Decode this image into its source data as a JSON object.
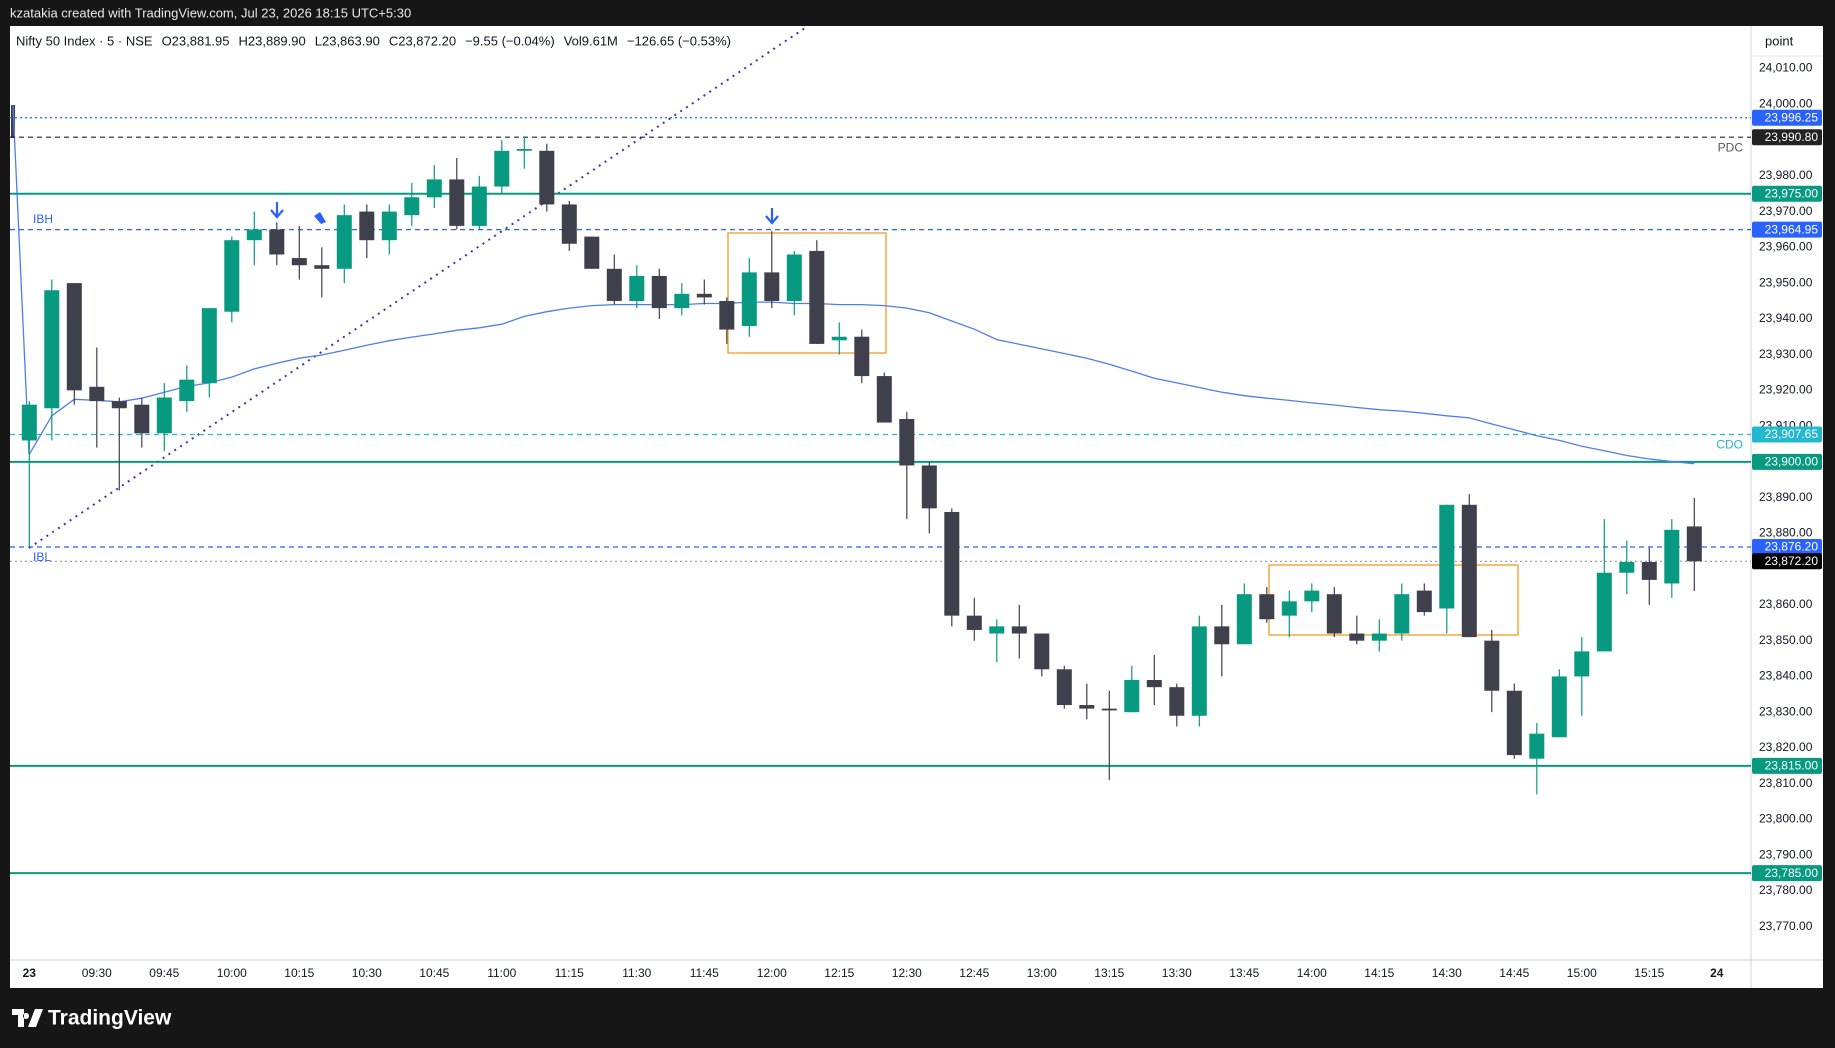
{
  "top_bar": {
    "text": "kzatakia created with TradingView.com, Jul 23, 2026 18:15 UTC+5:30"
  },
  "chart_data": {
    "type": "candlestick",
    "header": [
      "Nifty 50 Index · 5 · NSE",
      "O23,881.95",
      "H23,889.90",
      "L23,863.90",
      "C23,872.20",
      "−9.55 (−0.04%)",
      "Vol9.61M",
      "−126.65 (−0.53%)"
    ],
    "y_axis_title": "point",
    "categories": [
      "23",
      null,
      null,
      "09:30",
      null,
      null,
      "09:45",
      null,
      null,
      "10:00",
      null,
      null,
      "10:15",
      null,
      null,
      "10:30",
      null,
      null,
      "10:45",
      null,
      null,
      "11:00",
      null,
      null,
      "11:15",
      null,
      null,
      "11:30",
      null,
      null,
      "11:45",
      null,
      null,
      "12:00",
      null,
      null,
      "12:15",
      null,
      null,
      "12:30",
      null,
      null,
      "12:45",
      null,
      null,
      "13:00",
      null,
      null,
      "13:15",
      null,
      null,
      "13:30",
      null,
      null,
      "13:45",
      null,
      null,
      "14:00",
      null,
      null,
      "14:15",
      null,
      null,
      "14:30",
      null,
      null,
      "14:45",
      null,
      null,
      "15:00",
      null,
      null,
      "15:15",
      null,
      null,
      "24"
    ],
    "bold_categories": [
      "23",
      "24"
    ],
    "open": [
      23906,
      23915,
      23950,
      23921,
      23917,
      23916,
      23908,
      23917,
      23922,
      23942,
      23962,
      23965,
      23957,
      23955,
      23954,
      23970,
      23962,
      23969,
      23974,
      23979,
      23966,
      23977,
      23987,
      23987,
      23972,
      23963,
      23954,
      23945,
      23952,
      23943,
      23947,
      23945,
      23938,
      23953,
      23945,
      23959,
      23934,
      23935,
      23924,
      23912,
      23899,
      23886,
      23857,
      23852,
      23854,
      23852,
      23842,
      23832,
      23831,
      23830,
      23839,
      23837,
      23829,
      23854,
      23849,
      23863,
      23857,
      23861,
      23863,
      23852,
      23850,
      23852,
      23864,
      23859,
      23888,
      23850,
      23836,
      23817,
      23823,
      23840,
      23847,
      23869,
      23872,
      23866,
      23881.95,
      null
    ],
    "high": [
      23917,
      23951,
      23950,
      23932,
      23918,
      23918,
      23922,
      23927,
      23943,
      23963,
      23970,
      23967,
      23966,
      23960,
      23972,
      23972,
      23972,
      23978,
      23983,
      23985,
      23980,
      23990,
      23991,
      23989,
      23973,
      23963,
      23958,
      23955,
      23954,
      23950,
      23951,
      23946,
      23957,
      23964.5,
      23959,
      23962,
      23939,
      23937,
      23925,
      23914,
      23900,
      23887,
      23862,
      23856,
      23860,
      23852,
      23843,
      23838,
      23836,
      23843,
      23846,
      23838,
      23857,
      23860,
      23866,
      23865,
      23864,
      23866,
      23865,
      23857,
      23856,
      23866,
      23866,
      23888,
      23891,
      23853,
      23838,
      23827,
      23842,
      23851,
      23884,
      23878,
      23876,
      23884,
      23889.9,
      null
    ],
    "low": [
      23876.2,
      23906,
      23916,
      23904,
      23892,
      23904,
      23903,
      23914,
      23918,
      23939,
      23955,
      23955,
      23951,
      23946,
      23950,
      23957,
      23958,
      23966,
      23971,
      23965,
      23965,
      23975,
      23982,
      23970,
      23959,
      23954,
      23944,
      23943,
      23940,
      23941,
      23944,
      23933,
      23935,
      23943,
      23941,
      23933,
      23930,
      23922,
      23911,
      23884,
      23880,
      23854,
      23850,
      23844,
      23845,
      23840,
      23831,
      23828,
      23811,
      23830,
      23832,
      23826,
      23826,
      23840,
      23849,
      23855,
      23851,
      23858,
      23851,
      23849,
      23847,
      23850,
      23857,
      23852,
      23851,
      23830,
      23817,
      23807,
      23823,
      23829,
      23847,
      23863,
      23860,
      23862,
      23863.9,
      null
    ],
    "close": [
      23916,
      23948,
      23920,
      23917,
      23915,
      23908,
      23918,
      23923,
      23943,
      23962,
      23965,
      23958,
      23955,
      23954,
      23969,
      23962,
      23970,
      23974,
      23979,
      23966,
      23977,
      23987,
      23987.5,
      23972,
      23961,
      23954,
      23945,
      23952,
      23943,
      23947,
      23946,
      23937,
      23953,
      23945,
      23958,
      23933,
      23935,
      23924,
      23911,
      23899,
      23887,
      23857,
      23853,
      23854,
      23852,
      23842,
      23832,
      23831,
      23830.5,
      23839,
      23837,
      23829,
      23854,
      23849,
      23863,
      23856,
      23861,
      23864,
      23852,
      23850,
      23852,
      23863,
      23858,
      23888,
      23851,
      23836,
      23818,
      23824,
      23840,
      23847,
      23869,
      23872,
      23867,
      23881,
      23872.2,
      null
    ],
    "up_color": "#089981",
    "down_color": "#3e404b",
    "moving_average": {
      "color": "#4f7df0",
      "values": [
        23902.1,
        23912.9,
        23917.5,
        23917.2,
        23916.8,
        23917.8,
        23919.5,
        23921.1,
        23922.1,
        23923.7,
        23926.0,
        23927.6,
        23929.0,
        23929.9,
        23931.2,
        23932.6,
        23933.9,
        23934.9,
        23935.8,
        23936.8,
        23937.5,
        23938.5,
        23940.7,
        23942.0,
        23943.0,
        23943.7,
        23944.0,
        23944.0,
        23944.0,
        23944.0,
        23944.3,
        23944.3,
        23944.7,
        23944.7,
        23944.3,
        23944.3,
        23944.0,
        23944.0,
        23943.7,
        23943.0,
        23941.7,
        23939.4,
        23937.1,
        23934.2,
        23932.9,
        23931.6,
        23930.3,
        23929.0,
        23927.3,
        23925.4,
        23923.4,
        23922.1,
        23920.8,
        23919.5,
        23918.5,
        23917.8,
        23917.2,
        23916.5,
        23915.9,
        23915.2,
        23914.6,
        23914.2,
        23913.6,
        23912.9,
        23912.3,
        23910.6,
        23909.0,
        23907.3,
        23906.0,
        23904.4,
        23903.1,
        23901.8,
        23900.8,
        23900.1,
        23899.5,
        null
      ]
    },
    "levels": [
      {
        "value": 23996.25,
        "label": "23,996.25",
        "color": "#2962ff",
        "style": "dotted"
      },
      {
        "value": 23990.8,
        "label": "23,990.80",
        "color": "#222222",
        "style": "dashed",
        "name": "PDC",
        "name_side": "right",
        "name_vertical": "below",
        "name_color": "#555555"
      },
      {
        "value": 23975,
        "label": "23,975.00",
        "color": "#089981",
        "style": "solid"
      },
      {
        "value": 23964.95,
        "label": "23,964.95",
        "color": "#2962ff",
        "style": "dashed",
        "name": "IBH",
        "name_side": "left",
        "name_vertical": "above"
      },
      {
        "value": 23907.65,
        "label": "23,907.65",
        "color": "#22b8cf",
        "style": "dashed",
        "name": "CDO",
        "name_side": "right",
        "name_vertical": "below"
      },
      {
        "value": 23900,
        "label": "23,900.00",
        "color": "#089981",
        "style": "solid"
      },
      {
        "value": 23876.2,
        "label": "23,876.20",
        "color": "#2962ff",
        "style": "dashed",
        "name": "IBL",
        "name_side": "left",
        "name_vertical": "below"
      },
      {
        "value": 23872.2,
        "label": "23,872.20",
        "color": "#000000",
        "style": "dotted",
        "line_color": "#9598a1"
      },
      {
        "value": 23815,
        "label": "23,815.00",
        "color": "#089981",
        "style": "solid"
      },
      {
        "value": 23785,
        "label": "23,785.00",
        "color": "#089981",
        "style": "solid"
      }
    ],
    "ylim": [
      23760.7,
      24021.9
    ],
    "yticks": [
      {
        "value": 24010,
        "label": "24,010.00"
      },
      {
        "value": 24000,
        "label": "24,000.00"
      },
      {
        "value": 23980,
        "label": "23,980.00"
      },
      {
        "value": 23970,
        "label": "23,970.00"
      },
      {
        "value": 23960,
        "label": "23,960.00"
      },
      {
        "value": 23950,
        "label": "23,950.00"
      },
      {
        "value": 23940,
        "label": "23,940.00"
      },
      {
        "value": 23930,
        "label": "23,930.00"
      },
      {
        "value": 23920,
        "label": "23,920.00"
      },
      {
        "value": 23910,
        "label": "23,910.00"
      },
      {
        "value": 23890,
        "label": "23,890.00"
      },
      {
        "value": 23880,
        "label": "23,880.00"
      },
      {
        "value": 23860,
        "label": "23,860.00"
      },
      {
        "value": 23850,
        "label": "23,850.00"
      },
      {
        "value": 23840,
        "label": "23,840.00"
      },
      {
        "value": 23830,
        "label": "23,830.00"
      },
      {
        "value": 23820,
        "label": "23,820.00"
      },
      {
        "value": 23810,
        "label": "23,810.00"
      },
      {
        "value": 23800,
        "label": "23,800.00"
      },
      {
        "value": 23790,
        "label": "23,790.00"
      },
      {
        "value": 23780,
        "label": "23,780.00"
      },
      {
        "value": 23770,
        "label": "23,770.00"
      }
    ],
    "grid": false
  },
  "footer": {
    "brand": "TradingView"
  }
}
